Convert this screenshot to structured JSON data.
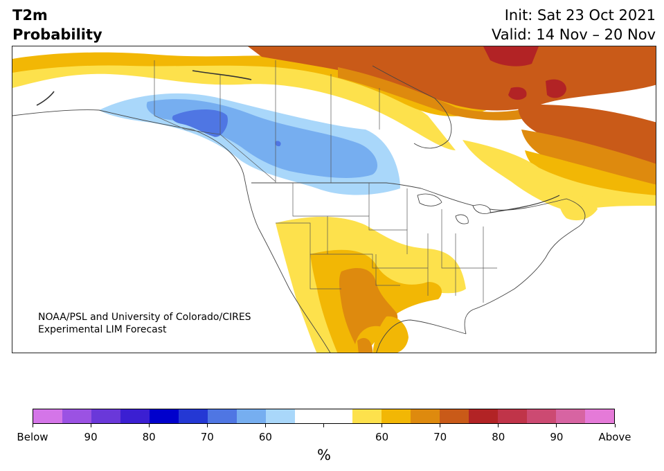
{
  "header": {
    "title_line1": "T2m",
    "title_line2": "Probability",
    "init": "Init: Sat 23 Oct 2021",
    "valid": "Valid: 14 Nov – 20 Nov"
  },
  "map": {
    "credit_line1": "NOAA/PSL and University of Colorado/CIRES",
    "credit_line2": "Experimental LIM Forecast",
    "colors": {
      "light_blue": "#a9d7fa",
      "mid_blue": "#76aef0",
      "blue": "#4f76e3",
      "yellow": "#fde14c",
      "gold": "#f2b705",
      "orange": "#de8a0e",
      "dark_orange": "#c95a18",
      "red": "#b22325",
      "land_line": "#444444",
      "lake_line": "#333333"
    }
  },
  "colorbar": {
    "colors": [
      "#d475e8",
      "#9b52e3",
      "#6a38d9",
      "#3b1fd2",
      "#0000cc",
      "#2438d4",
      "#4f76e3",
      "#76aef0",
      "#a9d7fa",
      "#ffffff",
      "#ffffff",
      "#fde14c",
      "#f2b705",
      "#de8a0e",
      "#c95a18",
      "#b22325",
      "#c03449",
      "#cc4a72",
      "#d764a2",
      "#e57ad8"
    ],
    "tick_labels": [
      "Below",
      "90",
      "80",
      "70",
      "60",
      "",
      "60",
      "70",
      "80",
      "90",
      "Above"
    ],
    "unit": "%"
  }
}
